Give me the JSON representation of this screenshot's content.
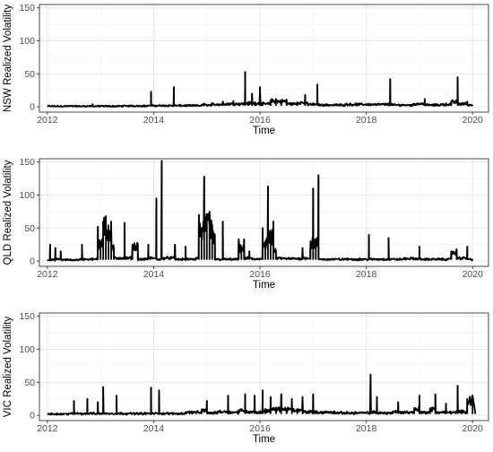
{
  "chart_data": [
    {
      "type": "line",
      "ylabel": "NSW Realized Volatility",
      "xlabel": "Time",
      "xlim": [
        2011.85,
        2020.3
      ],
      "ylim": [
        -8,
        155
      ],
      "xticks": [
        2012,
        2014,
        2016,
        2018,
        2020
      ],
      "yticks": [
        0,
        50,
        100,
        150
      ],
      "grid": true,
      "series": [
        {
          "baseline": 1.5,
          "points": [
            [
              2012.0,
              1
            ],
            [
              2012.4,
              1.5
            ],
            [
              2012.8,
              1
            ],
            [
              2012.85,
              4
            ],
            [
              2012.9,
              1
            ],
            [
              2013.4,
              1.5
            ],
            [
              2013.9,
              2
            ],
            [
              2013.95,
              23
            ],
            [
              2014.0,
              2
            ],
            [
              2014.2,
              2
            ],
            [
              2014.38,
              30
            ],
            [
              2014.42,
              2
            ],
            [
              2014.6,
              2
            ],
            [
              2014.9,
              3
            ],
            [
              2014.95,
              5
            ],
            [
              2015.0,
              3
            ],
            [
              2015.1,
              6
            ],
            [
              2015.2,
              4
            ],
            [
              2015.3,
              8
            ],
            [
              2015.4,
              5
            ],
            [
              2015.5,
              9
            ],
            [
              2015.6,
              5
            ],
            [
              2015.72,
              53
            ],
            [
              2015.78,
              6
            ],
            [
              2015.85,
              20
            ],
            [
              2015.9,
              6
            ],
            [
              2016.0,
              30
            ],
            [
              2016.05,
              5
            ],
            [
              2016.2,
              10
            ],
            [
              2016.3,
              12
            ],
            [
              2016.4,
              9
            ],
            [
              2016.5,
              11
            ],
            [
              2016.6,
              5
            ],
            [
              2016.7,
              7
            ],
            [
              2016.85,
              18
            ],
            [
              2016.9,
              6
            ],
            [
              2017.0,
              4
            ],
            [
              2017.08,
              34
            ],
            [
              2017.12,
              4
            ],
            [
              2017.4,
              3
            ],
            [
              2017.6,
              4
            ],
            [
              2017.8,
              5
            ],
            [
              2018.0,
              4
            ],
            [
              2018.2,
              4
            ],
            [
              2018.45,
              42
            ],
            [
              2018.5,
              4
            ],
            [
              2018.7,
              3
            ],
            [
              2018.9,
              5
            ],
            [
              2019.1,
              12
            ],
            [
              2019.2,
              3
            ],
            [
              2019.4,
              4
            ],
            [
              2019.6,
              8
            ],
            [
              2019.72,
              45
            ],
            [
              2019.78,
              5
            ],
            [
              2019.9,
              8
            ],
            [
              2020.0,
              3
            ]
          ]
        }
      ]
    },
    {
      "type": "line",
      "ylabel": "QLD Realized Volatility",
      "xlabel": "Time",
      "xlim": [
        2011.85,
        2020.3
      ],
      "ylim": [
        -8,
        155
      ],
      "xticks": [
        2012,
        2014,
        2016,
        2018,
        2020
      ],
      "yticks": [
        0,
        50,
        100,
        150
      ],
      "grid": true,
      "series": [
        {
          "baseline": 2,
          "points": [
            [
              2012.0,
              2
            ],
            [
              2012.05,
              25
            ],
            [
              2012.1,
              2
            ],
            [
              2012.15,
              20
            ],
            [
              2012.2,
              3
            ],
            [
              2012.25,
              15
            ],
            [
              2012.3,
              2
            ],
            [
              2012.6,
              3
            ],
            [
              2012.65,
              25
            ],
            [
              2012.7,
              3
            ],
            [
              2012.9,
              3
            ],
            [
              2012.95,
              52
            ],
            [
              2013.0,
              30
            ],
            [
              2013.05,
              60
            ],
            [
              2013.1,
              68
            ],
            [
              2013.15,
              45
            ],
            [
              2013.2,
              60
            ],
            [
              2013.25,
              20
            ],
            [
              2013.3,
              5
            ],
            [
              2013.45,
              58
            ],
            [
              2013.5,
              5
            ],
            [
              2013.6,
              25
            ],
            [
              2013.7,
              26
            ],
            [
              2013.8,
              3
            ],
            [
              2013.9,
              25
            ],
            [
              2013.95,
              5
            ],
            [
              2014.05,
              95
            ],
            [
              2014.1,
              3
            ],
            [
              2014.15,
              152
            ],
            [
              2014.2,
              5
            ],
            [
              2014.3,
              5
            ],
            [
              2014.4,
              25
            ],
            [
              2014.5,
              3
            ],
            [
              2014.6,
              22
            ],
            [
              2014.7,
              3
            ],
            [
              2014.8,
              5
            ],
            [
              2014.85,
              70
            ],
            [
              2014.9,
              50
            ],
            [
              2014.95,
              128
            ],
            [
              2015.0,
              60
            ],
            [
              2015.05,
              75
            ],
            [
              2015.1,
              55
            ],
            [
              2015.15,
              40
            ],
            [
              2015.2,
              3
            ],
            [
              2015.3,
              60
            ],
            [
              2015.35,
              3
            ],
            [
              2015.6,
              33
            ],
            [
              2015.65,
              20
            ],
            [
              2015.7,
              33
            ],
            [
              2015.75,
              5
            ],
            [
              2015.8,
              15
            ],
            [
              2015.85,
              5
            ],
            [
              2015.9,
              3
            ],
            [
              2016.0,
              4
            ],
            [
              2016.05,
              50
            ],
            [
              2016.1,
              30
            ],
            [
              2016.15,
              113
            ],
            [
              2016.2,
              40
            ],
            [
              2016.25,
              60
            ],
            [
              2016.3,
              15
            ],
            [
              2016.4,
              5
            ],
            [
              2016.6,
              4
            ],
            [
              2016.8,
              20
            ],
            [
              2016.85,
              5
            ],
            [
              2016.95,
              30
            ],
            [
              2017.0,
              110
            ],
            [
              2017.05,
              30
            ],
            [
              2017.1,
              130
            ],
            [
              2017.15,
              3
            ],
            [
              2017.3,
              3
            ],
            [
              2017.6,
              4
            ],
            [
              2017.9,
              3
            ],
            [
              2018.05,
              40
            ],
            [
              2018.1,
              3
            ],
            [
              2018.3,
              3
            ],
            [
              2018.42,
              35
            ],
            [
              2018.45,
              3
            ],
            [
              2018.7,
              4
            ],
            [
              2019.0,
              22
            ],
            [
              2019.05,
              3
            ],
            [
              2019.3,
              3
            ],
            [
              2019.6,
              15
            ],
            [
              2019.7,
              18
            ],
            [
              2019.8,
              5
            ],
            [
              2019.9,
              22
            ],
            [
              2020.0,
              3
            ]
          ]
        }
      ]
    },
    {
      "type": "line",
      "ylabel": "VIC Realized Volatility",
      "xlabel": "Time",
      "xlim": [
        2011.85,
        2020.3
      ],
      "ylim": [
        -8,
        155
      ],
      "xticks": [
        2012,
        2014,
        2016,
        2018,
        2020
      ],
      "yticks": [
        0,
        50,
        100,
        150
      ],
      "grid": true,
      "series": [
        {
          "baseline": 2,
          "points": [
            [
              2012.0,
              2
            ],
            [
              2012.4,
              3
            ],
            [
              2012.5,
              22
            ],
            [
              2012.55,
              3
            ],
            [
              2012.75,
              25
            ],
            [
              2012.8,
              3
            ],
            [
              2012.95,
              20
            ],
            [
              2013.0,
              3
            ],
            [
              2013.05,
              43
            ],
            [
              2013.1,
              3
            ],
            [
              2013.3,
              30
            ],
            [
              2013.35,
              3
            ],
            [
              2013.6,
              3
            ],
            [
              2013.95,
              42
            ],
            [
              2014.0,
              3
            ],
            [
              2014.1,
              38
            ],
            [
              2014.15,
              3
            ],
            [
              2014.6,
              5
            ],
            [
              2014.9,
              8
            ],
            [
              2015.0,
              22
            ],
            [
              2015.1,
              4
            ],
            [
              2015.2,
              6
            ],
            [
              2015.4,
              30
            ],
            [
              2015.45,
              5
            ],
            [
              2015.6,
              8
            ],
            [
              2015.72,
              32
            ],
            [
              2015.8,
              6
            ],
            [
              2015.9,
              30
            ],
            [
              2016.0,
              5
            ],
            [
              2016.05,
              38
            ],
            [
              2016.1,
              8
            ],
            [
              2016.2,
              28
            ],
            [
              2016.3,
              10
            ],
            [
              2016.4,
              32
            ],
            [
              2016.5,
              10
            ],
            [
              2016.6,
              25
            ],
            [
              2016.7,
              8
            ],
            [
              2016.8,
              28
            ],
            [
              2016.9,
              6
            ],
            [
              2017.0,
              32
            ],
            [
              2017.05,
              5
            ],
            [
              2017.2,
              5
            ],
            [
              2017.4,
              6
            ],
            [
              2017.6,
              4
            ],
            [
              2017.8,
              5
            ],
            [
              2018.0,
              4
            ],
            [
              2018.08,
              62
            ],
            [
              2018.12,
              5
            ],
            [
              2018.2,
              28
            ],
            [
              2018.25,
              4
            ],
            [
              2018.5,
              6
            ],
            [
              2018.6,
              20
            ],
            [
              2018.7,
              5
            ],
            [
              2018.9,
              10
            ],
            [
              2019.0,
              30
            ],
            [
              2019.05,
              5
            ],
            [
              2019.2,
              10
            ],
            [
              2019.3,
              32
            ],
            [
              2019.35,
              5
            ],
            [
              2019.5,
              18
            ],
            [
              2019.6,
              5
            ],
            [
              2019.72,
              45
            ],
            [
              2019.78,
              6
            ],
            [
              2019.9,
              25
            ],
            [
              2020.0,
              30
            ],
            [
              2020.05,
              5
            ]
          ]
        }
      ]
    }
  ]
}
